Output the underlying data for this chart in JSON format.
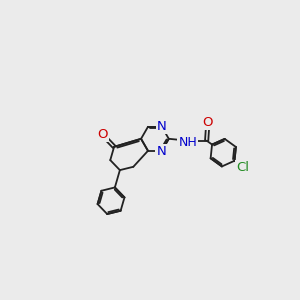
{
  "bg_color": "#ebebeb",
  "bond_color": "#222222",
  "atom_colors": {
    "N": "#0000cc",
    "O": "#cc0000",
    "Cl": "#228b22",
    "C": "#222222"
  },
  "lw": 1.3,
  "font_size": 9.5
}
